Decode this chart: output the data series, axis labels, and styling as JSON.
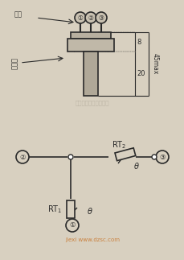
{
  "bg_color": "#d8d0c0",
  "line_color": "#2a2a2a",
  "text_color": "#2a2a2a",
  "watermark_color": "#b0a898",
  "figsize": [
    2.3,
    3.23
  ],
  "dpi": 100,
  "label_jiexian": "接头",
  "label_sanrepian": "散热片",
  "label_RT1": "RT",
  "label_RT2": "RT",
  "label_theta": "θ",
  "dim_8": "8",
  "dim_20": "20",
  "dim_45": "45max",
  "watermark1": "杭州格普科技有限公司",
  "watermark2": "jiexi www.dzsc.com"
}
